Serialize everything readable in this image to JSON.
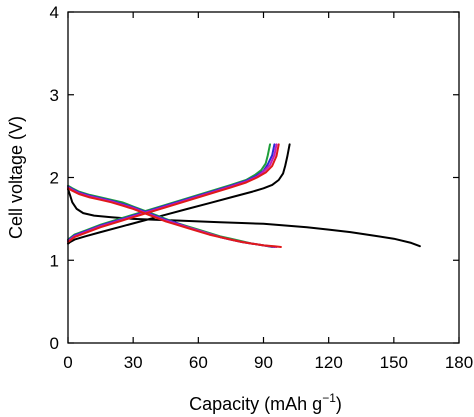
{
  "chart_data": {
    "type": "line",
    "title": "",
    "xlabel": "Capacity (mAh g",
    "xlabel_sup": "−1",
    "xlabel_close": ")",
    "ylabel": "Cell voltage (V)",
    "xlim": [
      0,
      180
    ],
    "ylim": [
      0,
      4
    ],
    "xticks": [
      0,
      30,
      60,
      90,
      120,
      150,
      180
    ],
    "yticks": [
      0,
      1,
      2,
      3,
      4
    ],
    "grid": false,
    "series": [
      {
        "color": "#000000",
        "role": "discharge",
        "x": [
          0,
          1,
          2,
          4,
          7,
          12,
          20,
          30,
          40,
          50,
          60,
          70,
          80,
          90,
          100,
          110,
          120,
          130,
          140,
          150,
          158,
          162
        ],
        "y": [
          1.86,
          1.78,
          1.7,
          1.62,
          1.57,
          1.54,
          1.52,
          1.5,
          1.49,
          1.48,
          1.47,
          1.46,
          1.45,
          1.44,
          1.42,
          1.4,
          1.37,
          1.34,
          1.3,
          1.26,
          1.21,
          1.17
        ]
      },
      {
        "color": "#000000",
        "role": "charge",
        "x": [
          0,
          1,
          3,
          8,
          15,
          25,
          35,
          45,
          55,
          65,
          75,
          85,
          90,
          94,
          97,
          99,
          100,
          101,
          102
        ],
        "y": [
          1.2,
          1.22,
          1.25,
          1.29,
          1.34,
          1.41,
          1.48,
          1.55,
          1.62,
          1.69,
          1.76,
          1.83,
          1.87,
          1.91,
          1.97,
          2.05,
          2.14,
          2.26,
          2.4
        ]
      },
      {
        "color": "#1f9e3a",
        "role": "discharge",
        "x": [
          0,
          2,
          5,
          10,
          15,
          20,
          25,
          30,
          35,
          40,
          45,
          50,
          55,
          60,
          65,
          70,
          75,
          80,
          85,
          90,
          94
        ],
        "y": [
          1.9,
          1.87,
          1.83,
          1.79,
          1.76,
          1.73,
          1.7,
          1.65,
          1.6,
          1.55,
          1.5,
          1.45,
          1.41,
          1.37,
          1.33,
          1.29,
          1.26,
          1.23,
          1.2,
          1.18,
          1.16
        ]
      },
      {
        "color": "#1f9e3a",
        "role": "charge",
        "x": [
          0,
          1,
          3,
          8,
          15,
          25,
          35,
          45,
          55,
          65,
          75,
          82,
          86,
          89,
          91,
          92,
          93
        ],
        "y": [
          1.25,
          1.27,
          1.31,
          1.36,
          1.43,
          1.51,
          1.59,
          1.67,
          1.75,
          1.83,
          1.91,
          1.97,
          2.03,
          2.09,
          2.17,
          2.27,
          2.4
        ]
      },
      {
        "color": "#2b2bd6",
        "role": "discharge",
        "x": [
          0,
          2,
          5,
          10,
          15,
          20,
          25,
          30,
          35,
          40,
          45,
          50,
          55,
          60,
          65,
          70,
          75,
          80,
          85,
          90,
          95
        ],
        "y": [
          1.89,
          1.86,
          1.82,
          1.78,
          1.75,
          1.72,
          1.68,
          1.64,
          1.59,
          1.54,
          1.49,
          1.45,
          1.4,
          1.36,
          1.32,
          1.28,
          1.25,
          1.22,
          1.2,
          1.18,
          1.16
        ]
      },
      {
        "color": "#2b2bd6",
        "role": "charge",
        "x": [
          0,
          1,
          3,
          8,
          15,
          25,
          35,
          45,
          55,
          65,
          75,
          82,
          86,
          90,
          92,
          94,
          95
        ],
        "y": [
          1.24,
          1.26,
          1.3,
          1.35,
          1.42,
          1.5,
          1.58,
          1.66,
          1.74,
          1.82,
          1.9,
          1.96,
          2.01,
          2.08,
          2.16,
          2.27,
          2.4
        ]
      },
      {
        "color": "#c21fb8",
        "role": "discharge",
        "x": [
          0,
          2,
          5,
          10,
          15,
          20,
          25,
          30,
          35,
          40,
          45,
          50,
          55,
          60,
          65,
          70,
          75,
          80,
          85,
          90,
          96
        ],
        "y": [
          1.88,
          1.85,
          1.81,
          1.77,
          1.74,
          1.71,
          1.67,
          1.63,
          1.58,
          1.53,
          1.48,
          1.44,
          1.4,
          1.36,
          1.32,
          1.28,
          1.25,
          1.22,
          1.2,
          1.18,
          1.16
        ]
      },
      {
        "color": "#c21fb8",
        "role": "charge",
        "x": [
          0,
          1,
          3,
          8,
          15,
          25,
          35,
          45,
          55,
          65,
          75,
          82,
          87,
          90,
          93,
          95,
          96
        ],
        "y": [
          1.23,
          1.25,
          1.29,
          1.34,
          1.41,
          1.49,
          1.57,
          1.65,
          1.73,
          1.81,
          1.89,
          1.95,
          2.01,
          2.07,
          2.15,
          2.27,
          2.4
        ]
      },
      {
        "color": "#e01a1a",
        "role": "discharge",
        "x": [
          0,
          2,
          5,
          10,
          15,
          20,
          25,
          30,
          35,
          40,
          45,
          50,
          55,
          60,
          65,
          70,
          75,
          80,
          85,
          90,
          95,
          98
        ],
        "y": [
          1.87,
          1.84,
          1.8,
          1.76,
          1.73,
          1.7,
          1.66,
          1.62,
          1.57,
          1.52,
          1.47,
          1.43,
          1.39,
          1.35,
          1.31,
          1.28,
          1.25,
          1.22,
          1.2,
          1.18,
          1.17,
          1.16
        ]
      },
      {
        "color": "#e01a1a",
        "role": "charge",
        "x": [
          0,
          1,
          3,
          8,
          15,
          25,
          35,
          45,
          55,
          65,
          75,
          82,
          87,
          91,
          94,
          96,
          97
        ],
        "y": [
          1.22,
          1.24,
          1.28,
          1.33,
          1.4,
          1.48,
          1.56,
          1.64,
          1.72,
          1.8,
          1.88,
          1.94,
          2.0,
          2.06,
          2.14,
          2.26,
          2.4
        ]
      }
    ]
  }
}
